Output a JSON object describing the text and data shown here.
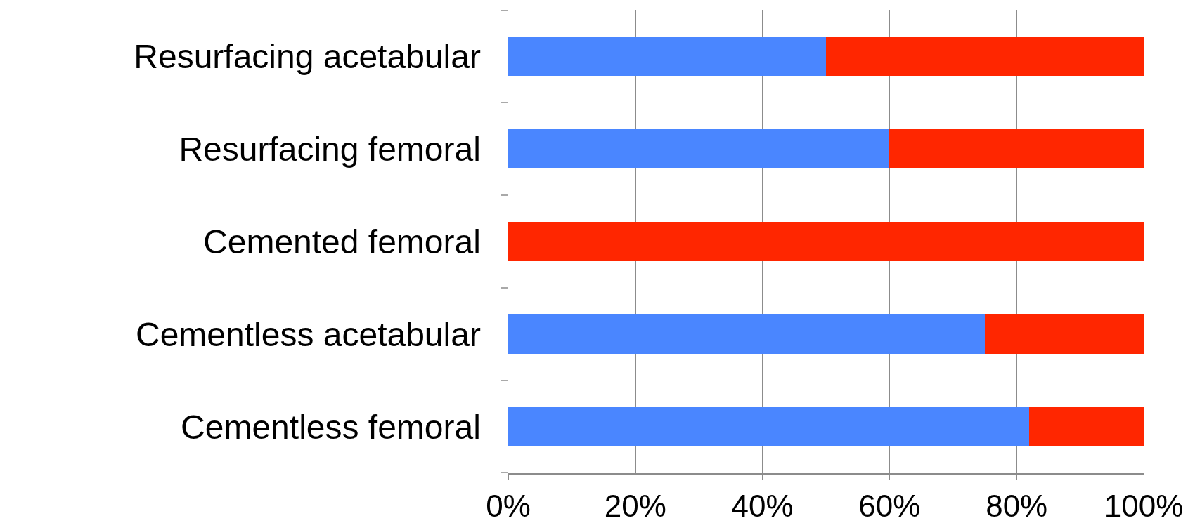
{
  "chart_data": {
    "type": "bar",
    "orientation": "horizontal",
    "stacked": true,
    "categories": [
      "Resurfacing acetabular",
      "Resurfacing femoral",
      "Cemented femoral",
      "Cementless acetabular",
      "Cementless femoral"
    ],
    "series": [
      {
        "color": "#4a86ff",
        "values": [
          50,
          60,
          0,
          75,
          82
        ]
      },
      {
        "color": "#ff2600",
        "values": [
          50,
          40,
          100,
          25,
          18
        ]
      }
    ],
    "xlim": [
      0,
      100
    ],
    "xticks": [
      {
        "value": 0,
        "label": "0%"
      },
      {
        "value": 20,
        "label": "20%"
      },
      {
        "value": 40,
        "label": "40%"
      },
      {
        "value": 60,
        "label": "60%"
      },
      {
        "value": 80,
        "label": "80%"
      },
      {
        "value": 100,
        "label": "100%"
      }
    ],
    "grid": "x"
  }
}
